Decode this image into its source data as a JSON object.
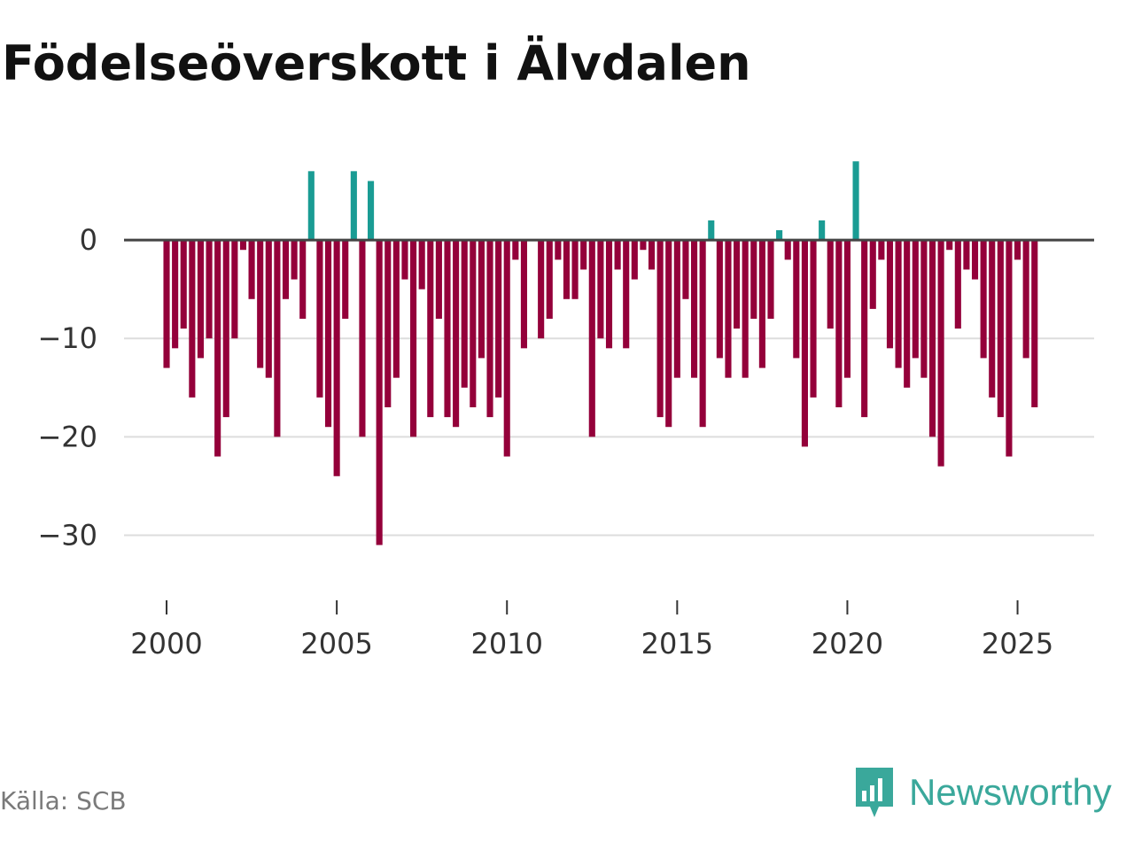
{
  "title": "Födelseöverskott i Älvdalen",
  "source": "Källa: SCB",
  "brand": "Newsworthy",
  "colors": {
    "positive": "#1a9c94",
    "negative": "#94003a",
    "zero_line": "#444444",
    "grid": "#dddddd"
  },
  "chart_data": {
    "type": "bar",
    "title": "Födelseöverskott i Älvdalen",
    "xlabel": "",
    "ylabel": "",
    "ylim": [
      -35,
      10
    ],
    "yticks": [
      0,
      -10,
      -20,
      -30
    ],
    "ytick_labels": [
      "0",
      "−10",
      "−20",
      "−30"
    ],
    "xticks": [
      2000,
      2005,
      2010,
      2015,
      2020,
      2025
    ],
    "xtick_labels": [
      "2000",
      "2005",
      "2010",
      "2015",
      "2020",
      "2025"
    ],
    "x_range": [
      1998.75,
      2027.25
    ],
    "bar_step": 0.25,
    "series": [
      {
        "name": "Födelseöverskott",
        "start": 2000.0,
        "values": [
          -13,
          -11,
          -9,
          -16,
          -12,
          -10,
          -22,
          -18,
          -10,
          -1,
          -6,
          -13,
          -14,
          -20,
          -6,
          -4,
          -8,
          7,
          -16,
          -19,
          -24,
          -8,
          7,
          -20,
          6,
          -31,
          -17,
          -14,
          -4,
          -20,
          -5,
          -18,
          -8,
          -18,
          -19,
          -15,
          -17,
          -12,
          -18,
          -16,
          -22,
          -2,
          -11,
          0,
          -10,
          -8,
          -2,
          -6,
          -6,
          -3,
          -20,
          -10,
          -11,
          -3,
          -11,
          -4,
          -1,
          -3,
          -18,
          -19,
          -14,
          -6,
          -14,
          -19,
          2,
          -12,
          -14,
          -9,
          -14,
          -8,
          -13,
          -8,
          1,
          -2,
          -12,
          -21,
          -16,
          2,
          -9,
          -17,
          -14,
          8,
          -18,
          -7,
          -2,
          -11,
          -13,
          -15,
          -12,
          -14,
          -20,
          -23,
          -1,
          -9,
          -3,
          -4,
          -12,
          -16,
          -18,
          -22,
          -2,
          -12,
          -17
        ]
      }
    ]
  }
}
